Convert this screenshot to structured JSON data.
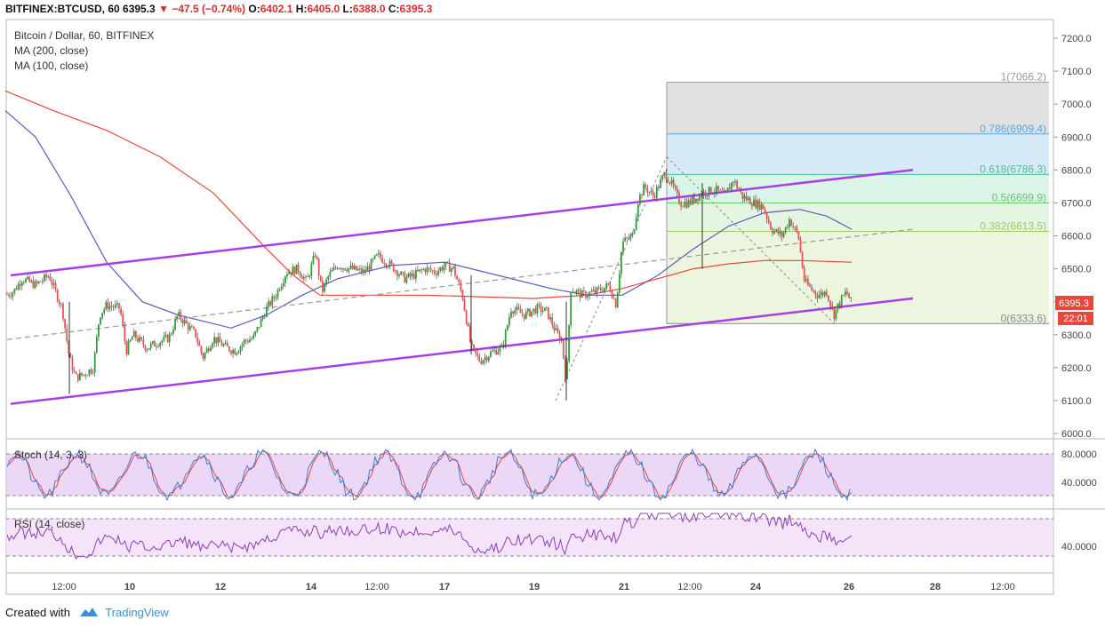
{
  "header": {
    "symbol": "BITFINEX:BTCUSD, 60",
    "last": "6395.3",
    "change": "−47.5 (−0.74%)",
    "o_label": "O:",
    "o": "6402.1",
    "h_label": "H:",
    "h": "6405.0",
    "l_label": "L:",
    "l": "6388.0",
    "c_label": "C:",
    "c": "6395.3"
  },
  "legend": {
    "title": "Bitcoin / Dollar, 60, BITFINEX",
    "ma200": "MA (200, close)",
    "ma100": "MA (100, close)",
    "stoch": "Stoch (14, 3, 3)",
    "rsi": "RSI (14, close)"
  },
  "price_badge": {
    "price": "6395.3",
    "countdown": "22:01"
  },
  "footer": {
    "created_with": "Created with",
    "brand": "TradingView"
  },
  "colors": {
    "up": "#26a69a",
    "up_body": "#2e9e3a",
    "down": "#ef5350",
    "channel": "#a83ee8",
    "ma200": "#e8473d",
    "ma100": "#5a5eb8",
    "stoch_k": "#3d7fd6",
    "stoch_d": "#e8473d",
    "rsi": "#8e3fb8",
    "badge": "#e8473d"
  },
  "chart_data": [
    {
      "type": "line",
      "title": "Bitcoin / Dollar, 60, BITFINEX",
      "ylim": [
        5970,
        7260
      ],
      "yticks": [
        "7200.0",
        "7100.0",
        "7000.0",
        "6900.0",
        "6800.0",
        "6700.0",
        "6600.0",
        "6500.0",
        "6400.0",
        "6300.0",
        "6200.0",
        "6100.0",
        "6000.0"
      ],
      "ytick_values": [
        7200,
        7100,
        7000,
        6900,
        6800,
        6700,
        6600,
        6500,
        6400,
        6300,
        6200,
        6100,
        6000
      ],
      "xticks": [
        "12:00",
        "10",
        "12",
        "14",
        "12:00",
        "17",
        "19",
        "21",
        "12:00",
        "24",
        "26",
        "28",
        "12:00"
      ],
      "price_path": [
        [
          0,
          6520
        ],
        [
          6,
          6420
        ],
        [
          15,
          6430
        ],
        [
          25,
          6470
        ],
        [
          40,
          6450
        ],
        [
          55,
          6480
        ],
        [
          70,
          6380
        ],
        [
          78,
          6230
        ],
        [
          85,
          6170
        ],
        [
          95,
          6180
        ],
        [
          105,
          6200
        ],
        [
          112,
          6360
        ],
        [
          120,
          6390
        ],
        [
          135,
          6380
        ],
        [
          142,
          6250
        ],
        [
          150,
          6300
        ],
        [
          165,
          6260
        ],
        [
          180,
          6280
        ],
        [
          190,
          6290
        ],
        [
          200,
          6360
        ],
        [
          210,
          6330
        ],
        [
          220,
          6300
        ],
        [
          228,
          6230
        ],
        [
          240,
          6290
        ],
        [
          255,
          6260
        ],
        [
          265,
          6250
        ],
        [
          275,
          6280
        ],
        [
          285,
          6290
        ],
        [
          300,
          6380
        ],
        [
          310,
          6420
        ],
        [
          322,
          6490
        ],
        [
          335,
          6500
        ],
        [
          345,
          6460
        ],
        [
          355,
          6550
        ],
        [
          362,
          6430
        ],
        [
          370,
          6480
        ],
        [
          380,
          6510
        ],
        [
          395,
          6500
        ],
        [
          410,
          6490
        ],
        [
          425,
          6540
        ],
        [
          440,
          6510
        ],
        [
          455,
          6470
        ],
        [
          465,
          6480
        ],
        [
          478,
          6500
        ],
        [
          490,
          6490
        ],
        [
          500,
          6510
        ],
        [
          510,
          6500
        ],
        [
          520,
          6420
        ],
        [
          530,
          6260
        ],
        [
          540,
          6220
        ],
        [
          555,
          6250
        ],
        [
          565,
          6260
        ],
        [
          575,
          6380
        ],
        [
          590,
          6360
        ],
        [
          605,
          6380
        ],
        [
          615,
          6370
        ],
        [
          625,
          6310
        ],
        [
          632,
          6280
        ],
        [
          637,
          6150
        ],
        [
          642,
          6440
        ],
        [
          655,
          6420
        ],
        [
          670,
          6430
        ],
        [
          685,
          6450
        ],
        [
          693,
          6390
        ],
        [
          700,
          6580
        ],
        [
          712,
          6600
        ],
        [
          718,
          6710
        ],
        [
          725,
          6750
        ],
        [
          735,
          6720
        ],
        [
          748,
          6790
        ],
        [
          755,
          6760
        ],
        [
          765,
          6700
        ],
        [
          775,
          6700
        ],
        [
          790,
          6730
        ],
        [
          805,
          6740
        ],
        [
          815,
          6720
        ],
        [
          825,
          6770
        ],
        [
          835,
          6720
        ],
        [
          848,
          6700
        ],
        [
          858,
          6690
        ],
        [
          868,
          6620
        ],
        [
          880,
          6600
        ],
        [
          888,
          6650
        ],
        [
          898,
          6600
        ],
        [
          905,
          6460
        ],
        [
          912,
          6440
        ],
        [
          920,
          6420
        ],
        [
          930,
          6430
        ],
        [
          938,
          6360
        ],
        [
          945,
          6400
        ],
        [
          952,
          6430
        ],
        [
          958,
          6395
        ]
      ],
      "ma200_path": [
        [
          6,
          7040
        ],
        [
          60,
          6980
        ],
        [
          120,
          6920
        ],
        [
          180,
          6840
        ],
        [
          240,
          6730
        ],
        [
          300,
          6560
        ],
        [
          330,
          6480
        ],
        [
          360,
          6420
        ],
        [
          420,
          6420
        ],
        [
          480,
          6420
        ],
        [
          540,
          6415
        ],
        [
          600,
          6410
        ],
        [
          660,
          6420
        ],
        [
          700,
          6440
        ],
        [
          740,
          6470
        ],
        [
          780,
          6500
        ],
        [
          820,
          6515
        ],
        [
          860,
          6525
        ],
        [
          900,
          6525
        ],
        [
          958,
          6520
        ]
      ],
      "ma100_path": [
        [
          6,
          6980
        ],
        [
          40,
          6900
        ],
        [
          80,
          6720
        ],
        [
          120,
          6520
        ],
        [
          160,
          6400
        ],
        [
          200,
          6360
        ],
        [
          260,
          6320
        ],
        [
          300,
          6360
        ],
        [
          340,
          6420
        ],
        [
          380,
          6470
        ],
        [
          440,
          6510
        ],
        [
          500,
          6520
        ],
        [
          560,
          6480
        ],
        [
          620,
          6440
        ],
        [
          660,
          6420
        ],
        [
          700,
          6420
        ],
        [
          740,
          6480
        ],
        [
          780,
          6560
        ],
        [
          820,
          6630
        ],
        [
          860,
          6670
        ],
        [
          900,
          6680
        ],
        [
          930,
          6660
        ],
        [
          958,
          6620
        ]
      ],
      "channel": {
        "upper": [
          [
            12,
            6480
          ],
          [
            1027,
            6800
          ]
        ],
        "lower": [
          [
            12,
            6090
          ],
          [
            1027,
            6410
          ]
        ],
        "mid_dashed": [
          [
            8,
            6285
          ],
          [
            1027,
            6620
          ]
        ]
      },
      "fib": {
        "x_start": 750,
        "x_end": 1180,
        "levels": [
          {
            "label": "1(7066.2)",
            "value": 7066.2
          },
          {
            "label": "0.786(6909.4)",
            "value": 6909.4
          },
          {
            "label": "0.618(6786.3)",
            "value": 6786.3
          },
          {
            "label": "0.5(6699.9)",
            "value": 6699.9
          },
          {
            "label": "0.382(6613.5)",
            "value": 6613.5
          },
          {
            "label": "0(6333.6)",
            "value": 6333.6
          }
        ]
      }
    },
    {
      "type": "line",
      "title": "Stoch (14, 3, 3)",
      "ylim": [
        0,
        100
      ],
      "yticks": [
        "80.0000",
        "40.0000"
      ],
      "ytick_values": [
        80,
        40
      ],
      "band": [
        20,
        80
      ]
    },
    {
      "type": "line",
      "title": "RSI (14, close)",
      "ylim": [
        20,
        80
      ],
      "yticks": [
        "40.0000"
      ],
      "ytick_values": [
        40
      ],
      "band": [
        30,
        70
      ]
    }
  ]
}
